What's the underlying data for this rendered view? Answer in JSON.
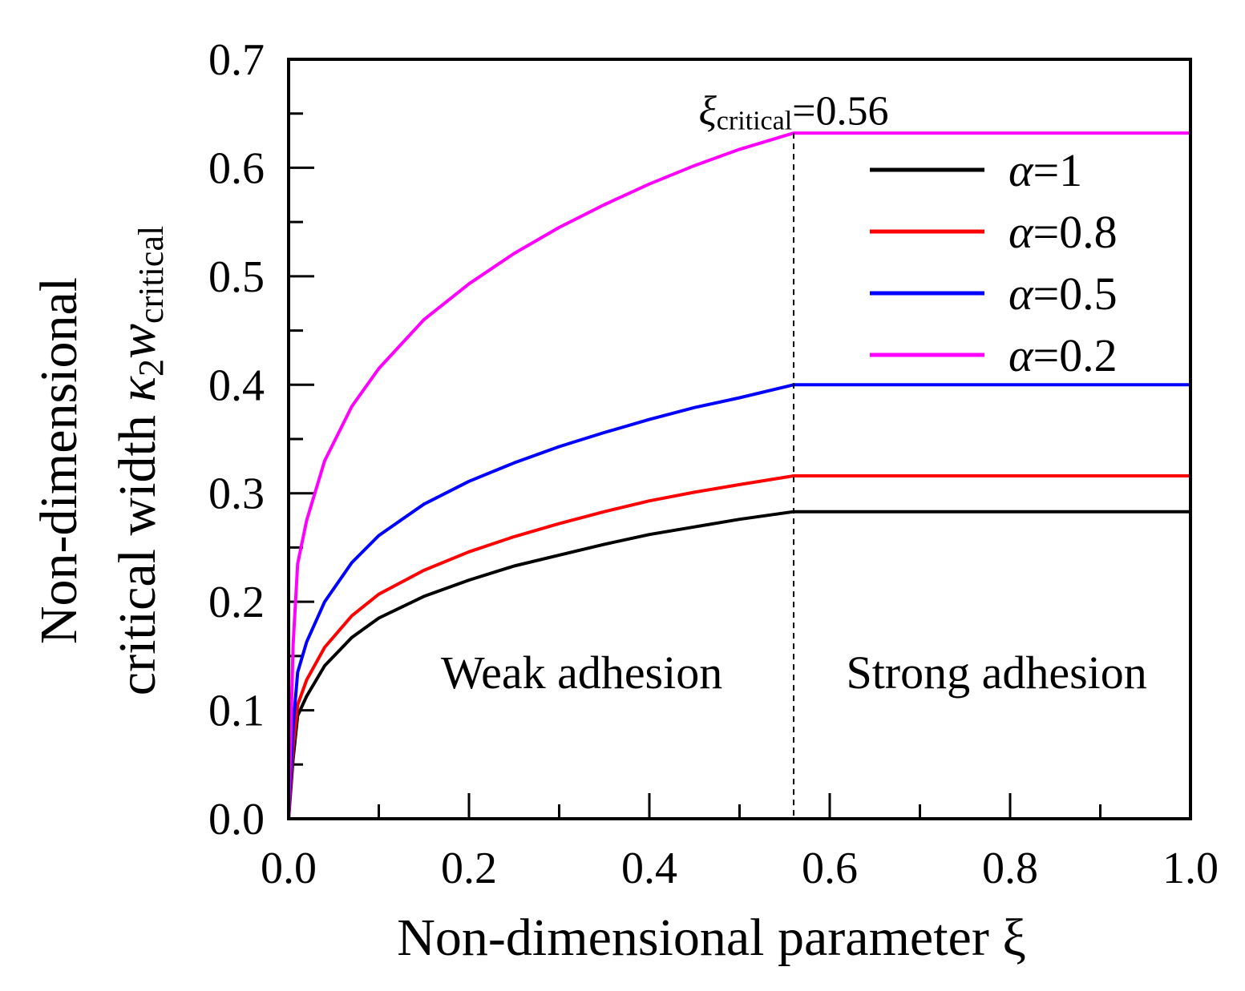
{
  "chart_data": {
    "type": "line",
    "xlabel": "Non-dimensional  parameter ξ",
    "ylabel_line1": "Non-dimensional",
    "ylabel_line2_prefix": "critical width ",
    "ylabel_kappa": "κ",
    "ylabel_kappa_sub": "2",
    "ylabel_w": "w",
    "ylabel_w_sub": "critical",
    "xlim": [
      0,
      1.0
    ],
    "ylim": [
      0,
      0.7
    ],
    "x_ticks": [
      0.0,
      0.2,
      0.4,
      0.6,
      0.8,
      1.0
    ],
    "x_tick_labels": [
      "0.0",
      "0.2",
      "0.4",
      "0.6",
      "0.8",
      "1.0"
    ],
    "y_ticks": [
      0.0,
      0.1,
      0.2,
      0.3,
      0.4,
      0.5,
      0.6,
      0.7
    ],
    "y_tick_labels": [
      "0.0",
      "0.1",
      "0.2",
      "0.3",
      "0.4",
      "0.5",
      "0.6",
      "0.7"
    ],
    "grid": false,
    "legend_position": "top-right",
    "critical_line": {
      "x": 0.56,
      "label_symbol": "ξ",
      "label_sub": "critical",
      "label_value": "=0.56",
      "color": "#000000"
    },
    "annotations": [
      {
        "text": "Weak adhesion",
        "x": 0.325,
        "y": 0.135
      },
      {
        "text": "Strong adhesion",
        "x": 0.785,
        "y": 0.135
      }
    ],
    "series": [
      {
        "name": "α=1",
        "symbol": "α",
        "value_text": "=1",
        "color": "#000000",
        "x": [
          0,
          0.005,
          0.01,
          0.02,
          0.04,
          0.07,
          0.1,
          0.15,
          0.2,
          0.25,
          0.3,
          0.35,
          0.4,
          0.45,
          0.5,
          0.56,
          1.0
        ],
        "y": [
          0,
          0.055,
          0.095,
          0.113,
          0.141,
          0.167,
          0.185,
          0.205,
          0.22,
          0.233,
          0.243,
          0.253,
          0.262,
          0.269,
          0.276,
          0.283,
          0.283
        ]
      },
      {
        "name": "α=0.8",
        "symbol": "α",
        "value_text": "=0.8",
        "color": "#ff0000",
        "x": [
          0,
          0.005,
          0.01,
          0.02,
          0.04,
          0.07,
          0.1,
          0.15,
          0.2,
          0.25,
          0.3,
          0.35,
          0.4,
          0.45,
          0.5,
          0.56,
          1.0
        ],
        "y": [
          0,
          0.065,
          0.105,
          0.128,
          0.158,
          0.187,
          0.207,
          0.229,
          0.246,
          0.26,
          0.272,
          0.283,
          0.293,
          0.301,
          0.308,
          0.316,
          0.316
        ]
      },
      {
        "name": "α=0.5",
        "symbol": "α",
        "value_text": "=0.5",
        "color": "#0000ff",
        "x": [
          0,
          0.005,
          0.01,
          0.02,
          0.04,
          0.07,
          0.1,
          0.15,
          0.2,
          0.25,
          0.3,
          0.35,
          0.4,
          0.45,
          0.5,
          0.56,
          1.0
        ],
        "y": [
          0,
          0.085,
          0.135,
          0.163,
          0.2,
          0.236,
          0.261,
          0.29,
          0.311,
          0.328,
          0.343,
          0.356,
          0.368,
          0.379,
          0.388,
          0.4,
          0.4
        ]
      },
      {
        "name": "α=0.2",
        "symbol": "α",
        "value_text": "=0.2",
        "color": "#ff00ff",
        "x": [
          0,
          0.005,
          0.01,
          0.02,
          0.04,
          0.07,
          0.1,
          0.15,
          0.2,
          0.25,
          0.3,
          0.35,
          0.4,
          0.45,
          0.5,
          0.56,
          1.0
        ],
        "y": [
          0,
          0.16,
          0.235,
          0.275,
          0.33,
          0.38,
          0.415,
          0.46,
          0.493,
          0.521,
          0.545,
          0.566,
          0.585,
          0.602,
          0.617,
          0.632,
          0.632
        ]
      }
    ]
  }
}
